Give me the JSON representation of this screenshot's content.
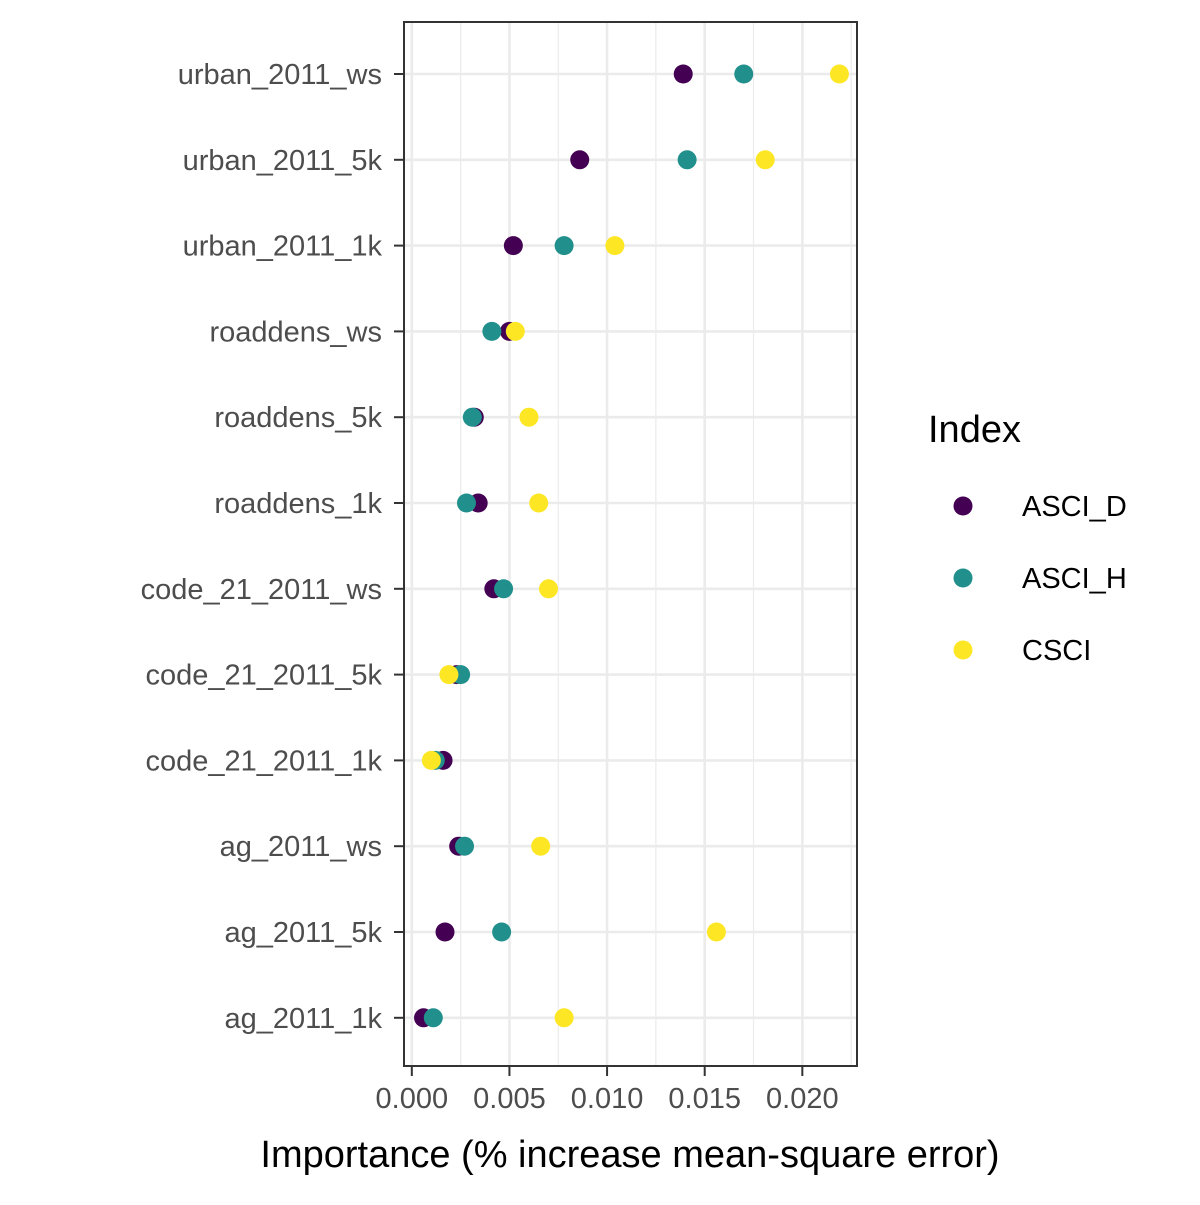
{
  "chart_data": {
    "type": "scatter",
    "xlabel": "Importance (% increase mean-square error)",
    "ylabel": "",
    "xlim": [
      -0.0004,
      0.0228
    ],
    "x_ticks": [
      0.0,
      0.005,
      0.01,
      0.015,
      0.02
    ],
    "x_tick_labels": [
      "0.000",
      "0.005",
      "0.010",
      "0.015",
      "0.020"
    ],
    "categories": [
      "urban_2011_ws",
      "urban_2011_5k",
      "urban_2011_1k",
      "roaddens_ws",
      "roaddens_5k",
      "roaddens_1k",
      "code_21_2011_ws",
      "code_21_2011_5k",
      "code_21_2011_1k",
      "ag_2011_ws",
      "ag_2011_5k",
      "ag_2011_1k"
    ],
    "series": [
      {
        "name": "ASCI_D",
        "color": "#440154",
        "values": [
          0.0139,
          0.0086,
          0.0052,
          0.005,
          0.0032,
          0.0034,
          0.0042,
          0.0023,
          0.0016,
          0.0024,
          0.0017,
          0.0006
        ]
      },
      {
        "name": "ASCI_H",
        "color": "#21908C",
        "values": [
          0.017,
          0.0141,
          0.0078,
          0.0041,
          0.0031,
          0.0028,
          0.0047,
          0.0025,
          0.0012,
          0.0027,
          0.0046,
          0.0011
        ]
      },
      {
        "name": "CSCI",
        "color": "#FDE725",
        "values": [
          0.0219,
          0.0181,
          0.0104,
          0.0053,
          0.006,
          0.0065,
          0.007,
          0.0019,
          0.001,
          0.0066,
          0.0156,
          0.0078
        ]
      }
    ],
    "grid": true,
    "legend": {
      "title": "Index",
      "placement": "right",
      "entries": [
        "ASCI_D",
        "ASCI_H",
        "CSCI"
      ]
    }
  }
}
